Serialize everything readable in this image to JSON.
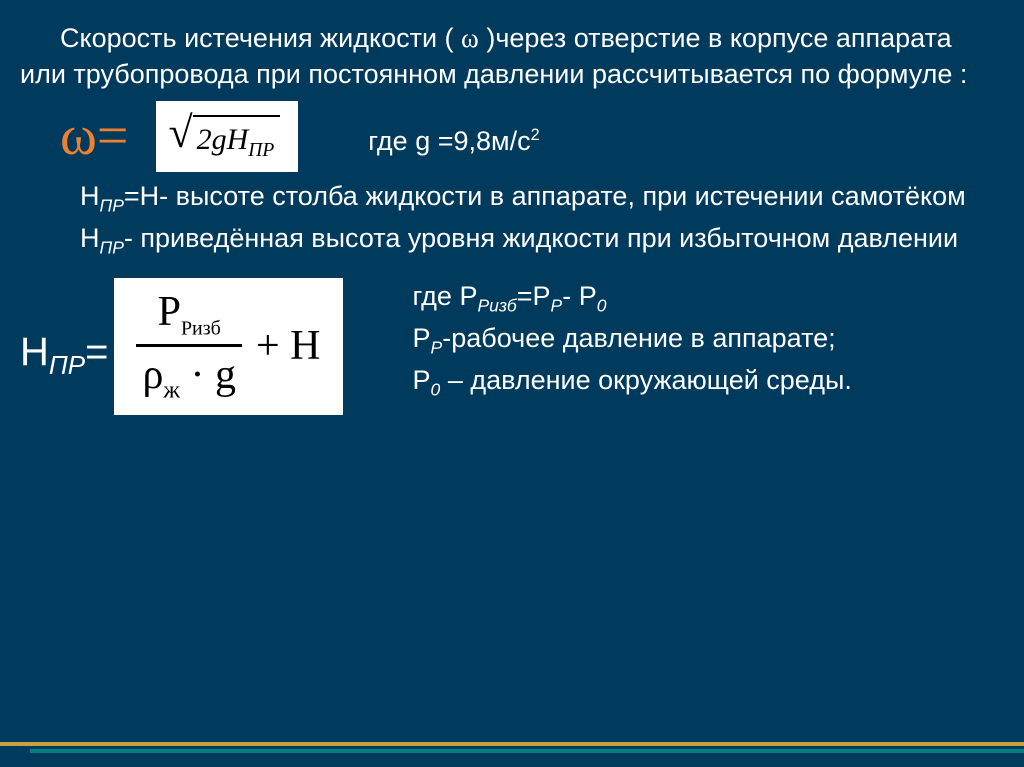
{
  "colors": {
    "background": "#003a5c",
    "text": "#ffffff",
    "accent": "#f08030",
    "formula_bg": "#ffffff",
    "formula_text": "#000000",
    "stripe_gold": "#c8a040",
    "stripe_teal": "#008080"
  },
  "fontsize": {
    "body": 27,
    "omega": 56,
    "formula2_label": 40
  },
  "intro": {
    "part1": "Скорость истечения жидкости ( ",
    "omega": "ω",
    "part2": " )через отверстие в корпусе аппарата или трубопровода при постоянном давлении рассчитывается по формуле :"
  },
  "formula1": {
    "lhs": "ω=",
    "sqrt_body_main": "2gH",
    "sqrt_body_sub": "ПР",
    "gde_label": "где   g =9,8м/с",
    "gde_sup": "2"
  },
  "para2": {
    "hpr": "Н",
    "hpr_sub": "ПР",
    "rest": "=Н- высоте столба жидкости в аппарате, при истечении самотёком"
  },
  "para3": {
    "hpr": "Н",
    "hpr_sub": "ПР",
    "rest": "- приведённая высота уровня жидкости при избыточном давлении"
  },
  "formula2": {
    "lhs_main": "Н",
    "lhs_sub": "ПР",
    "lhs_eq": "=",
    "frac_top_main": "P",
    "frac_top_sub": "Ризб",
    "frac_bot_rho": "ρ",
    "frac_bot_rho_sub": "ж",
    "frac_bot_dot": " · ",
    "frac_bot_g": "g",
    "plus_h": " + H"
  },
  "right": {
    "line1_pre": "где Р",
    "line1_sub1": "Ризб",
    "line1_mid": "=Р",
    "line1_sub2": "Р",
    "line1_mid2": "- Р",
    "line1_sub3": "0",
    "line2_pre": "Р",
    "line2_sub": "Р",
    "line2_rest": "-рабочее давление в аппарате;",
    "line3_pre": "Р",
    "line3_sub": "0",
    "line3_rest": " – давление окружающей среды."
  }
}
